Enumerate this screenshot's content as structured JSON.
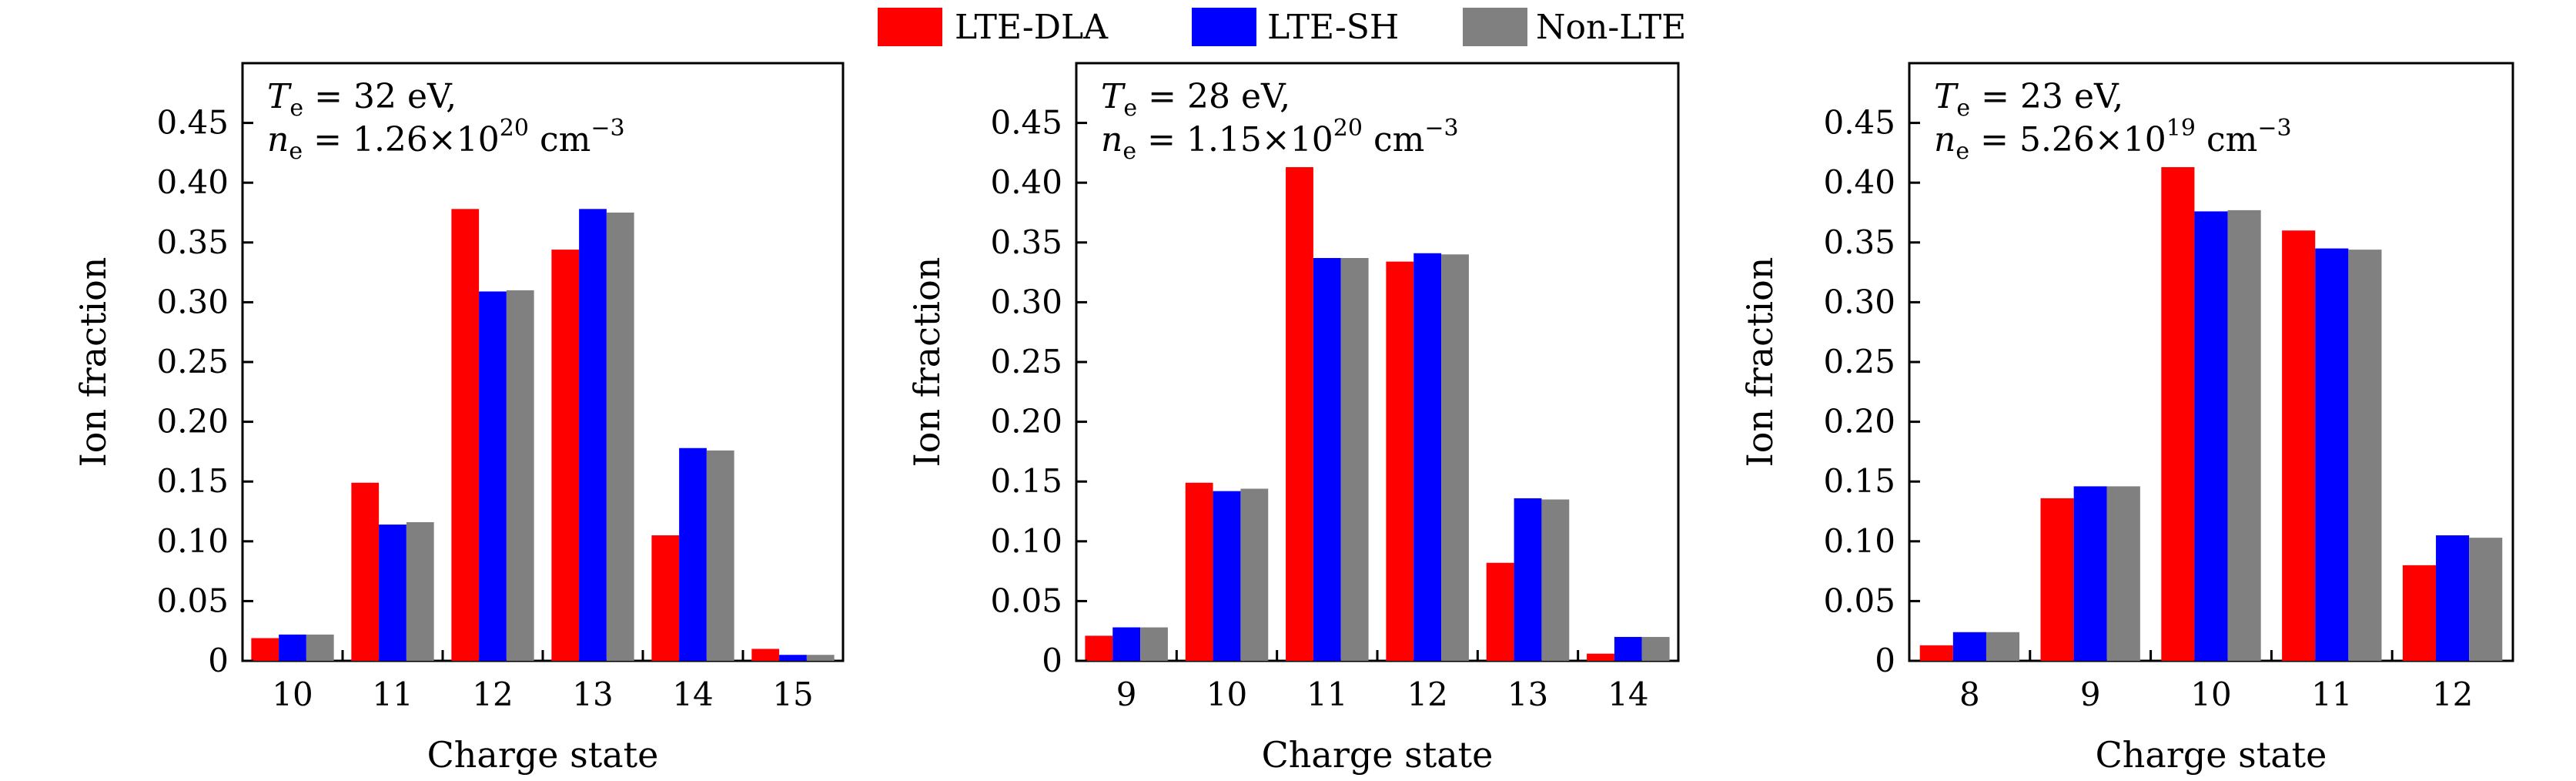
{
  "legend": [
    {
      "label": "LTE-DLA",
      "color": "#FF0000"
    },
    {
      "label": "LTE-SH",
      "color": "#0000FF"
    },
    {
      "label": "Non-LTE",
      "color": "#808080"
    }
  ],
  "chart_data": [
    {
      "type": "bar",
      "xlabel": "Charge state",
      "ylabel": "Ion fraction",
      "ylim": [
        0,
        0.5
      ],
      "yticks": [
        "0",
        "0.05",
        "0.10",
        "0.15",
        "0.20",
        "0.25",
        "0.30",
        "0.35",
        "0.40",
        "0.45"
      ],
      "annotation": {
        "te_label": "T",
        "te_sub": "e",
        "te_value": " = 32 eV,",
        "ne_label": "n",
        "ne_sub": "e",
        "ne_value": " = 1.26×10",
        "ne_exp": "20",
        "ne_unit": " cm",
        "ne_unit_exp": "−3"
      },
      "categories": [
        "10",
        "11",
        "12",
        "13",
        "14",
        "15"
      ],
      "series": [
        {
          "name": "LTE-DLA",
          "values": [
            0.019,
            0.149,
            0.378,
            0.344,
            0.105,
            0.01
          ]
        },
        {
          "name": "LTE-SH",
          "values": [
            0.022,
            0.114,
            0.309,
            0.378,
            0.178,
            0.005
          ]
        },
        {
          "name": "Non-LTE",
          "values": [
            0.022,
            0.116,
            0.31,
            0.375,
            0.176,
            0.005
          ]
        }
      ]
    },
    {
      "type": "bar",
      "xlabel": "Charge state",
      "ylabel": "Ion fraction",
      "ylim": [
        0,
        0.5
      ],
      "yticks": [
        "0",
        "0.05",
        "0.10",
        "0.15",
        "0.20",
        "0.25",
        "0.30",
        "0.35",
        "0.40",
        "0.45"
      ],
      "annotation": {
        "te_label": "T",
        "te_sub": "e",
        "te_value": " = 28 eV,",
        "ne_label": "n",
        "ne_sub": "e",
        "ne_value": " = 1.15×10",
        "ne_exp": "20",
        "ne_unit": " cm",
        "ne_unit_exp": "−3"
      },
      "categories": [
        "9",
        "10",
        "11",
        "12",
        "13",
        "14"
      ],
      "series": [
        {
          "name": "LTE-DLA",
          "values": [
            0.021,
            0.149,
            0.413,
            0.334,
            0.082,
            0.006
          ]
        },
        {
          "name": "LTE-SH",
          "values": [
            0.028,
            0.142,
            0.337,
            0.341,
            0.136,
            0.02
          ]
        },
        {
          "name": "Non-LTE",
          "values": [
            0.028,
            0.144,
            0.337,
            0.34,
            0.135,
            0.02
          ]
        }
      ]
    },
    {
      "type": "bar",
      "xlabel": "Charge state",
      "ylabel": "Ion fraction",
      "ylim": [
        0,
        0.5
      ],
      "yticks": [
        "0",
        "0.05",
        "0.10",
        "0.15",
        "0.20",
        "0.25",
        "0.30",
        "0.35",
        "0.40",
        "0.45"
      ],
      "annotation": {
        "te_label": "T",
        "te_sub": "e",
        "te_value": " = 23 eV,",
        "ne_label": "n",
        "ne_sub": "e",
        "ne_value": " = 5.26×10",
        "ne_exp": "19",
        "ne_unit": " cm",
        "ne_unit_exp": "−3"
      },
      "categories": [
        "8",
        "9",
        "10",
        "11",
        "12"
      ],
      "series": [
        {
          "name": "LTE-DLA",
          "values": [
            0.013,
            0.136,
            0.413,
            0.36,
            0.08
          ]
        },
        {
          "name": "LTE-SH",
          "values": [
            0.024,
            0.146,
            0.376,
            0.345,
            0.105
          ]
        },
        {
          "name": "Non-LTE",
          "values": [
            0.024,
            0.146,
            0.377,
            0.344,
            0.103
          ]
        }
      ]
    }
  ]
}
